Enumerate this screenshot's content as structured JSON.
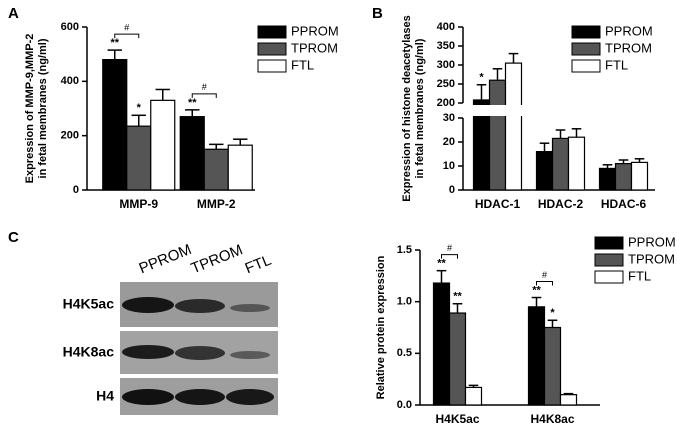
{
  "chart_data": [
    {
      "panel": "A",
      "type": "bar",
      "y_label": [
        "Expression of MMP-9,MMP-2",
        "in fetal membranes (ng/ml)"
      ],
      "categories": [
        "MMP-9",
        "MMP-2"
      ],
      "series": [
        {
          "name": "PPROM",
          "color": "#000000",
          "values": [
            480,
            270
          ],
          "errors": [
            35,
            25
          ],
          "significance": [
            "**",
            "**"
          ]
        },
        {
          "name": "TPROM",
          "color": "#555555",
          "values": [
            235,
            150
          ],
          "errors": [
            40,
            18
          ],
          "significance": [
            "*",
            null
          ]
        },
        {
          "name": "FTL",
          "color": "#ffffff",
          "values": [
            330,
            165
          ],
          "errors": [
            40,
            22
          ]
        }
      ],
      "comparisons": [
        "#",
        "#"
      ],
      "ylim": [
        0,
        600
      ],
      "yticks": [
        0,
        200,
        400,
        600
      ],
      "legend": "upper right"
    },
    {
      "panel": "B",
      "type": "bar",
      "y_label": [
        "Expression of histone deacetylases",
        "in fetal membranes (ng/ml)"
      ],
      "categories": [
        "HDAC-1",
        "HDAC-2",
        "HDAC-6"
      ],
      "series": [
        {
          "name": "PPROM",
          "color": "#000000",
          "values": [
            208,
            16,
            9
          ],
          "errors": [
            40,
            3.5,
            1.5
          ],
          "significance": [
            "*",
            null,
            null
          ]
        },
        {
          "name": "TPROM",
          "color": "#555555",
          "values": [
            260,
            21.5,
            11
          ],
          "errors": [
            30,
            3.5,
            1.5
          ]
        },
        {
          "name": "FTL",
          "color": "#ffffff",
          "values": [
            305,
            22,
            11.5
          ],
          "errors": [
            25,
            3.5,
            1.5
          ]
        }
      ],
      "ylim": [
        0,
        400
      ],
      "ybreak": [
        30,
        200
      ],
      "yticks": [
        0,
        10,
        20,
        30,
        200,
        250,
        300,
        350,
        400
      ],
      "legend": "upper right"
    },
    {
      "type": "bar",
      "y_label": [
        "Relative protein expression"
      ],
      "categories": [
        "H4K5ac",
        "H4K8ac"
      ],
      "series": [
        {
          "name": "PPROM",
          "color": "#000000",
          "values": [
            1.18,
            0.95
          ],
          "errors": [
            0.12,
            0.09
          ],
          "significance": [
            "**",
            "**"
          ]
        },
        {
          "name": "TPROM",
          "color": "#555555",
          "values": [
            0.89,
            0.75
          ],
          "errors": [
            0.09,
            0.07
          ],
          "significance": [
            "**",
            "*"
          ]
        },
        {
          "name": "FTL",
          "color": "#ffffff",
          "values": [
            0.17,
            0.1
          ],
          "errors": [
            0.02,
            0.01
          ]
        }
      ],
      "comparisons": [
        "#",
        "#"
      ],
      "ylim": [
        0,
        1.5
      ],
      "yticks": [
        {
          "value": 0,
          "label": "0.0"
        },
        0.5,
        {
          "value": 1,
          "label": "1.0"
        },
        1.5
      ],
      "legend": "upper right"
    }
  ],
  "blot": {
    "panel": "C",
    "lanes": [
      "PPROM",
      "TPROM",
      "FTL"
    ],
    "rows": [
      "H4K5ac",
      "H4K8ac",
      "H4"
    ]
  }
}
